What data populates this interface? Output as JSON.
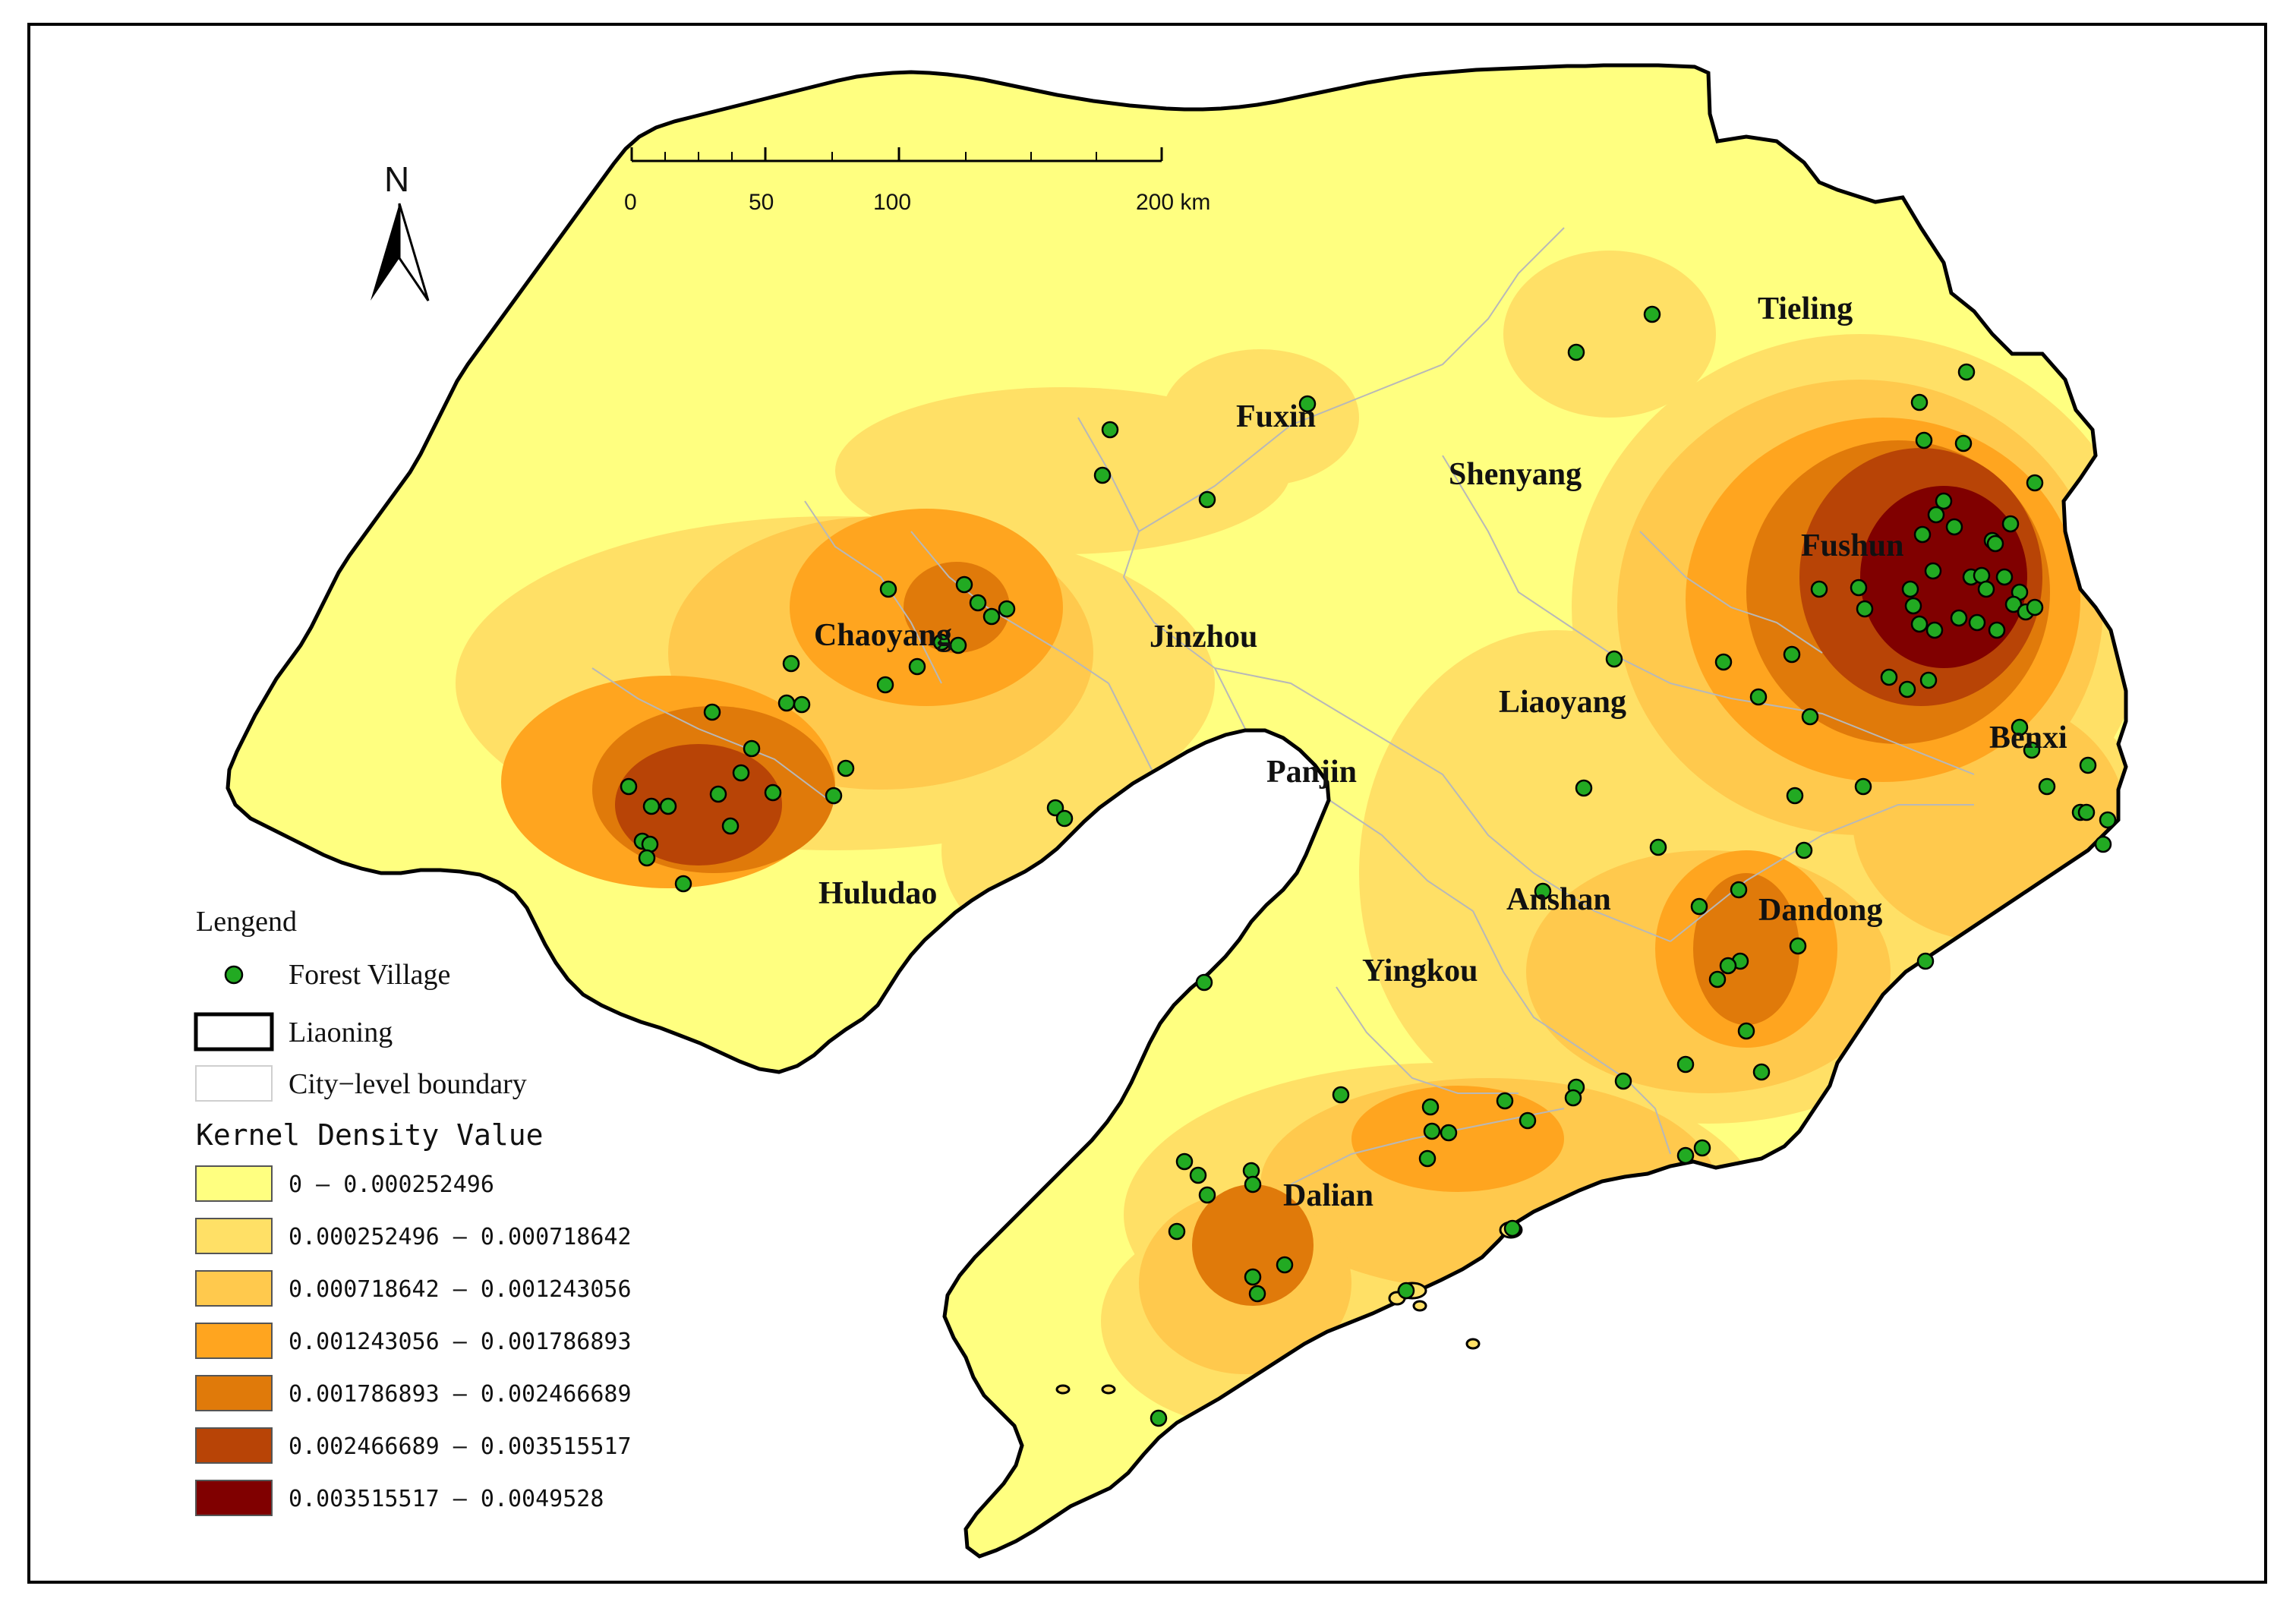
{
  "north_arrow": {
    "label": "N",
    "icon": "north-arrow-icon"
  },
  "scale_bar": {
    "ticks": [
      "0",
      "50",
      "100",
      "200 km"
    ]
  },
  "cities": [
    {
      "id": "tieling",
      "name": "Tieling"
    },
    {
      "id": "fuxin",
      "name": "Fuxin"
    },
    {
      "id": "shenyang",
      "name": "Shenyang"
    },
    {
      "id": "fushun",
      "name": "Fushun"
    },
    {
      "id": "chaoyang",
      "name": "Chaoyang"
    },
    {
      "id": "jinzhou",
      "name": "Jinzhou"
    },
    {
      "id": "liaoyang",
      "name": "Liaoyang"
    },
    {
      "id": "benxi",
      "name": "Benxi"
    },
    {
      "id": "panjin",
      "name": "Panjin"
    },
    {
      "id": "huludao",
      "name": "Huludao"
    },
    {
      "id": "anshan",
      "name": "Anshan"
    },
    {
      "id": "dandong",
      "name": "Dandong"
    },
    {
      "id": "yingkou",
      "name": "Yingkou"
    },
    {
      "id": "dalian",
      "name": "Dalian"
    }
  ],
  "legend": {
    "title": "Lengend",
    "forest_village": "Forest Village",
    "province": "Liaoning",
    "city_boundary": "City−level boundary",
    "density_title": "Kernel Density Value",
    "classes": [
      {
        "range": "0 – 0.000252496",
        "color": "#ffff80"
      },
      {
        "range": "0.000252496 – 0.000718642",
        "color": "#ffe066"
      },
      {
        "range": "0.000718642 – 0.001243056",
        "color": "#ffc94d"
      },
      {
        "range": "0.001243056 – 0.001786893",
        "color": "#ffa51f"
      },
      {
        "range": "0.001786893 – 0.002466689",
        "color": "#e07a0a"
      },
      {
        "range": "0.002466689 – 0.003515517",
        "color": "#b84406"
      },
      {
        "range": "0.003515517 – 0.0049528",
        "color": "#800000"
      }
    ]
  },
  "colors": {
    "village_fill": "#22aa22",
    "province_outline": "#000000",
    "city_boundary": "#b8b8b8"
  }
}
